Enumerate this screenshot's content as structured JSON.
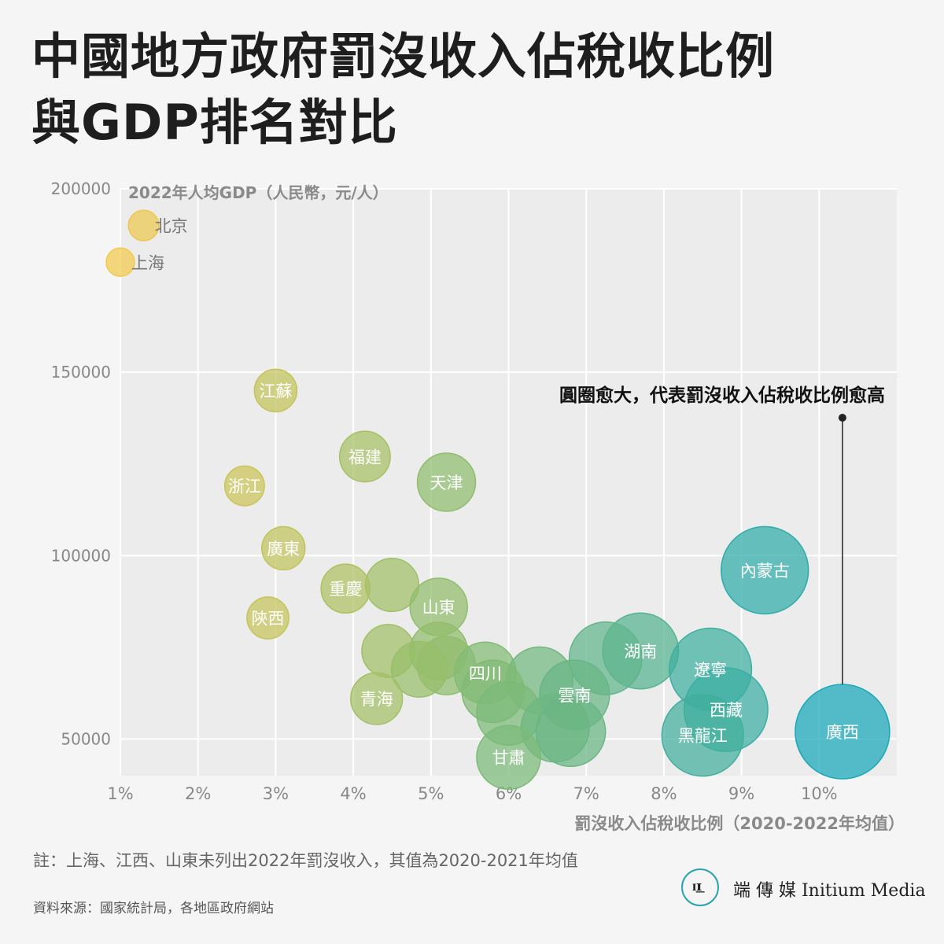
{
  "title_line1": "中國地方政府罰沒收入佔稅收比例",
  "title_line2": "與GDP排名對比",
  "note": "註：上海、江西、山東未列出2022年罰沒收入，其值為2020-2021年均值",
  "source": "資料來源：國家統計局，各地區政府網站",
  "logo": {
    "glyph": "ɪ͟ɪ",
    "text": "端 傳 媒  Initium Media"
  },
  "chart_data": {
    "type": "scatter",
    "encoding": "bubble size and color increase with x",
    "ylabel": "2022年人均GDP（人民幣，元/人）",
    "xlabel": "罰沒收入佔稅收比例（2020-2022年均值）",
    "annotation": "圓圈愈大，代表罰沒收入佔稅收比例愈高",
    "xlim": [
      1,
      11
    ],
    "ylim": [
      40000,
      200000
    ],
    "xticks": [
      1,
      2,
      3,
      4,
      5,
      6,
      7,
      8,
      9,
      10
    ],
    "xtick_labels": [
      "1%",
      "2%",
      "3%",
      "4%",
      "5%",
      "6%",
      "7%",
      "8%",
      "9%",
      "10%"
    ],
    "yticks": [
      50000,
      100000,
      150000,
      200000
    ],
    "ytick_labels": [
      "50000",
      "100000",
      "150000",
      "200000"
    ],
    "grid": true,
    "colors": {
      "low": "#f2c94c",
      "mid": "#8fbd6c",
      "high": "#17a8b8"
    },
    "points": [
      {
        "label": "北京",
        "x": 1.3,
        "y": 190000
      },
      {
        "label": "上海",
        "x": 1.0,
        "y": 180000
      },
      {
        "label": "江蘇",
        "x": 3.0,
        "y": 145000
      },
      {
        "label": "福建",
        "x": 4.15,
        "y": 127000
      },
      {
        "label": "天津",
        "x": 5.2,
        "y": 120000
      },
      {
        "label": "浙江",
        "x": 2.6,
        "y": 119000
      },
      {
        "label": "廣東",
        "x": 3.1,
        "y": 102000
      },
      {
        "label": "內蒙古",
        "x": 9.3,
        "y": 96000
      },
      {
        "label": "重慶",
        "x": 3.9,
        "y": 91000
      },
      {
        "label": "",
        "x": 4.5,
        "y": 92000
      },
      {
        "label": "山東",
        "x": 5.1,
        "y": 86000
      },
      {
        "label": "陝西",
        "x": 2.9,
        "y": 83000
      },
      {
        "label": "湖南",
        "x": 7.7,
        "y": 74000
      },
      {
        "label": "",
        "x": 4.45,
        "y": 74000
      },
      {
        "label": "",
        "x": 5.1,
        "y": 74000
      },
      {
        "label": "",
        "x": 7.25,
        "y": 72000
      },
      {
        "label": "遼寧",
        "x": 8.6,
        "y": 69000
      },
      {
        "label": "",
        "x": 4.85,
        "y": 69000
      },
      {
        "label": "",
        "x": 5.2,
        "y": 70000
      },
      {
        "label": "四川",
        "x": 5.7,
        "y": 68000
      },
      {
        "label": "",
        "x": 6.4,
        "y": 66000
      },
      {
        "label": "",
        "x": 5.8,
        "y": 63000
      },
      {
        "label": "雲南",
        "x": 6.85,
        "y": 62000
      },
      {
        "label": "青海",
        "x": 4.3,
        "y": 61000
      },
      {
        "label": "西藏",
        "x": 8.8,
        "y": 58000
      },
      {
        "label": "",
        "x": 6.0,
        "y": 57000
      },
      {
        "label": "",
        "x": 6.6,
        "y": 53000
      },
      {
        "label": "",
        "x": 6.8,
        "y": 52000
      },
      {
        "label": "廣西",
        "x": 10.3,
        "y": 52000
      },
      {
        "label": "黑龍江",
        "x": 8.5,
        "y": 51000
      },
      {
        "label": "甘肅",
        "x": 6.0,
        "y": 45000
      }
    ]
  }
}
